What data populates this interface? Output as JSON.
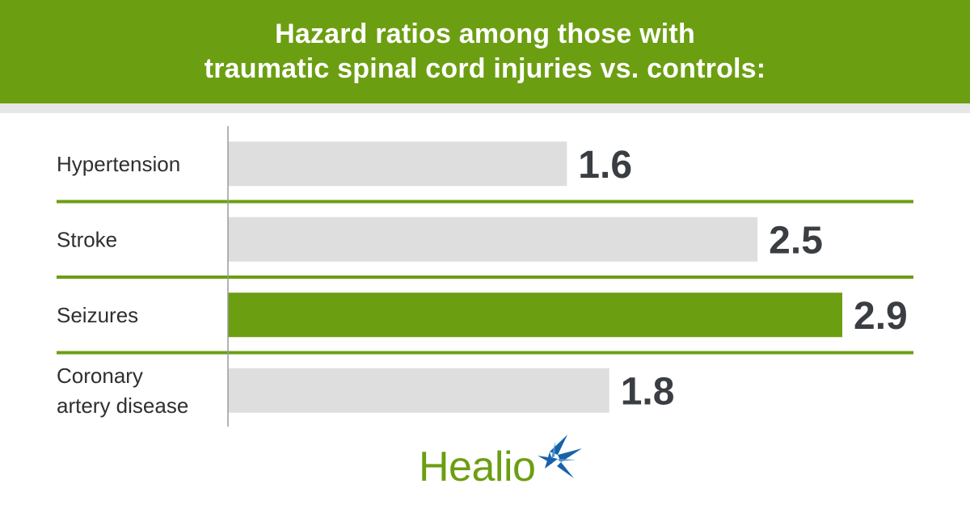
{
  "header": {
    "title_line1": "Hazard ratios among those with",
    "title_line2": "traumatic spinal cord injuries vs. controls:"
  },
  "colors": {
    "brand_green": "#6c9e12",
    "bar_gray": "#dedede",
    "highlight_bar": "#6c9e12",
    "value_text": "#3a3d42",
    "logo_blue": "#1763a8"
  },
  "chart_data": {
    "type": "bar",
    "orientation": "horizontal",
    "title": "Hazard ratios among those with traumatic spinal cord injuries vs. controls:",
    "categories": [
      [
        "Hypertension"
      ],
      [
        "Stroke"
      ],
      [
        "Seizures"
      ],
      [
        "Coronary",
        "artery disease"
      ]
    ],
    "values": [
      1.6,
      2.5,
      2.9,
      1.8
    ],
    "value_labels": [
      "1.6",
      "2.5",
      "2.9",
      "1.8"
    ],
    "highlight_index": 2,
    "xlim": [
      0,
      2.9
    ],
    "grid": false
  },
  "logo": {
    "text": "Healio",
    "icon": "star-burst-icon"
  }
}
